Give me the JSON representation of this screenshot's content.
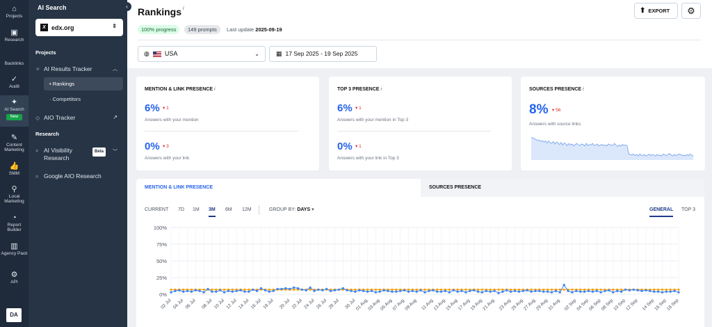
{
  "rail": {
    "items": [
      {
        "label": "Projects",
        "icon": "home-icon"
      },
      {
        "label": "Research",
        "icon": "research-icon"
      },
      {
        "label": "Backlinks",
        "icon": "backlinks-icon"
      },
      {
        "label": "Audit",
        "icon": "audit-icon"
      },
      {
        "label": "AI Search",
        "icon": "sparkle-icon",
        "badge": "New"
      },
      {
        "label": "Content Marketing",
        "icon": "edit-icon"
      },
      {
        "label": "SMM",
        "icon": "thumbs-up-icon"
      },
      {
        "label": "Local Marketing",
        "icon": "pin-icon"
      },
      {
        "label": "Report Builder",
        "icon": "report-icon"
      },
      {
        "label": "Agency Pack",
        "icon": "building-icon"
      },
      {
        "label": "API",
        "icon": "gear-icon"
      }
    ],
    "avatar": "DA"
  },
  "sidebar": {
    "title": "AI Search",
    "project": "edx.org",
    "projects_heading": "Projects",
    "tracker_label": "AI Results Tracker",
    "sub_rankings": "Rankings",
    "sub_competitors": "Competitors",
    "aio_tracker": "AIO Tracker",
    "research_heading": "Research",
    "visibility_label": "AI Visibility Research",
    "visibility_badge": "Beta",
    "google_aio": "Google AIO Research"
  },
  "header": {
    "title": "Rankings",
    "progress": "100% progress",
    "prompts": "149 prompts",
    "last_update_label": "Last update",
    "last_update_value": "2025-09-19",
    "export_label": "EXPORT"
  },
  "filters": {
    "country": "USA",
    "date_range": "17 Sep 2025 - 19 Sep 2025"
  },
  "cards": {
    "mention": {
      "title": "MENTION & LINK PRESENCE",
      "v1": "6%",
      "d1": "1",
      "s1": "Answers with your mention",
      "v2": "0%",
      "d2": "3",
      "s2": "Answers with your link"
    },
    "top3": {
      "title": "TOP 3 PRESENCE",
      "v1": "6%",
      "d1": "1",
      "s1": "Answers with your mention in Top 3",
      "v2": "0%",
      "d2": "1",
      "s2": "Answers with your link in Top 3"
    },
    "sources": {
      "title": "SOURCES PRESENCE",
      "v1": "8%",
      "d1": "56",
      "s1": "Answers with source links"
    }
  },
  "chart_panel": {
    "tab_active": "MENTION & LINK PRESENCE",
    "tab_inactive": "SOURCES PRESENCE",
    "ranges": [
      "CURRENT",
      "7D",
      "1M",
      "3M",
      "6M",
      "12M"
    ],
    "active_range": "3M",
    "groupby_label": "GROUP BY:",
    "groupby_value": "DAYS",
    "view_general": "GENERAL",
    "view_top3": "TOP 3"
  },
  "chart_data": {
    "type": "line",
    "ylabel_ticks": [
      "100%",
      "75%",
      "50%",
      "25%",
      "0%"
    ],
    "ylim": [
      0,
      100
    ],
    "x_ticks": [
      "02 Jul",
      "04 Jul",
      "06 Jul",
      "08 Jul",
      "10 Jul",
      "12 Jul",
      "14 Jul",
      "16 Jul",
      "18 Jul",
      "20 Jul",
      "22 Jul",
      "24 Jul",
      "26 Jul",
      "28 Jul",
      "30 Jul",
      "01 Aug",
      "03 Aug",
      "05 Aug",
      "07 Aug",
      "09 Aug",
      "11 Aug",
      "13 Aug",
      "15 Aug",
      "17 Aug",
      "19 Aug",
      "21 Aug",
      "23 Aug",
      "25 Aug",
      "27 Aug",
      "29 Aug",
      "31 Aug",
      "02 Sep",
      "04 Sep",
      "06 Sep",
      "08 Sep",
      "10 Sep",
      "12 Sep",
      "14 Sep",
      "16 Sep",
      "18 Sep"
    ],
    "grid": true,
    "series": [
      {
        "color": "#3b82f6",
        "values": [
          3,
          5,
          6,
          4,
          5,
          4,
          6,
          5,
          3,
          8,
          4,
          4,
          6,
          3,
          5,
          4,
          5,
          6,
          4,
          4,
          7,
          5,
          9,
          6,
          4,
          5,
          8,
          8,
          9,
          8,
          10,
          9,
          7,
          6,
          10,
          5,
          7,
          6,
          8,
          5,
          6,
          7,
          9,
          6,
          5,
          4,
          6,
          5,
          4,
          5,
          3,
          4,
          6,
          5,
          4,
          4,
          5,
          6,
          4,
          5,
          4,
          6,
          3,
          5,
          6,
          4,
          4,
          5,
          3,
          6,
          4,
          5,
          3,
          5,
          6,
          4,
          3,
          5,
          4,
          5,
          2,
          4,
          6,
          4,
          5,
          4,
          5,
          6,
          4,
          5,
          5,
          4,
          4,
          3,
          5,
          3,
          14,
          5,
          3,
          5,
          4,
          4,
          5,
          4,
          5,
          3,
          5,
          6,
          3,
          5,
          4,
          7,
          6,
          7,
          6,
          5,
          6,
          5,
          4,
          4,
          3,
          4,
          4,
          5,
          3
        ]
      },
      {
        "color": "#f59e0b",
        "values": [
          7,
          7,
          7,
          7,
          7,
          7,
          7,
          7,
          7,
          7,
          7,
          7,
          7,
          7,
          7,
          7,
          7,
          7,
          7,
          7,
          7,
          7,
          7,
          7,
          7,
          7,
          7,
          7,
          7,
          7,
          7,
          7,
          7,
          7,
          7,
          7,
          7,
          7,
          7,
          7,
          7,
          7,
          7,
          7,
          7,
          7,
          7,
          7,
          7,
          7,
          7,
          7,
          7,
          7,
          7,
          7,
          7,
          7,
          7,
          7,
          7,
          7,
          7,
          7,
          7,
          7,
          7,
          7,
          7,
          7,
          7,
          7,
          7,
          7,
          7,
          7,
          7,
          7,
          7,
          7,
          7,
          7,
          7,
          7,
          7,
          7,
          7,
          7,
          7,
          7,
          7,
          7,
          7,
          7,
          7,
          7,
          7,
          7,
          7,
          7,
          7,
          7,
          7,
          7,
          7,
          7,
          7,
          7,
          7,
          7,
          7,
          7,
          7,
          7,
          7,
          7,
          7,
          7,
          7,
          7,
          7,
          7,
          7,
          7,
          7
        ]
      }
    ],
    "sparkline": {
      "type": "area",
      "values": [
        45,
        44,
        43,
        41,
        39,
        40,
        37,
        39,
        36,
        38,
        34,
        38,
        35,
        33,
        37,
        32,
        36,
        34,
        31,
        35,
        30,
        34,
        32,
        29,
        33,
        30,
        32,
        28,
        31,
        33,
        30,
        29,
        32,
        31,
        28,
        33,
        29,
        31,
        30,
        33,
        29,
        30,
        32,
        28,
        30,
        31,
        29,
        30,
        28,
        32,
        31,
        29,
        30,
        33,
        29,
        27,
        30,
        28,
        31,
        29,
        30,
        28,
        12,
        11,
        10,
        12,
        9,
        11,
        8,
        12,
        10,
        9,
        11,
        8,
        10,
        12,
        9,
        11,
        10,
        8,
        11,
        9,
        10,
        8,
        12,
        10,
        9,
        11,
        13,
        10,
        8,
        11,
        9,
        10,
        12,
        11,
        9,
        10,
        8,
        11,
        9,
        12,
        10,
        8
      ]
    }
  }
}
